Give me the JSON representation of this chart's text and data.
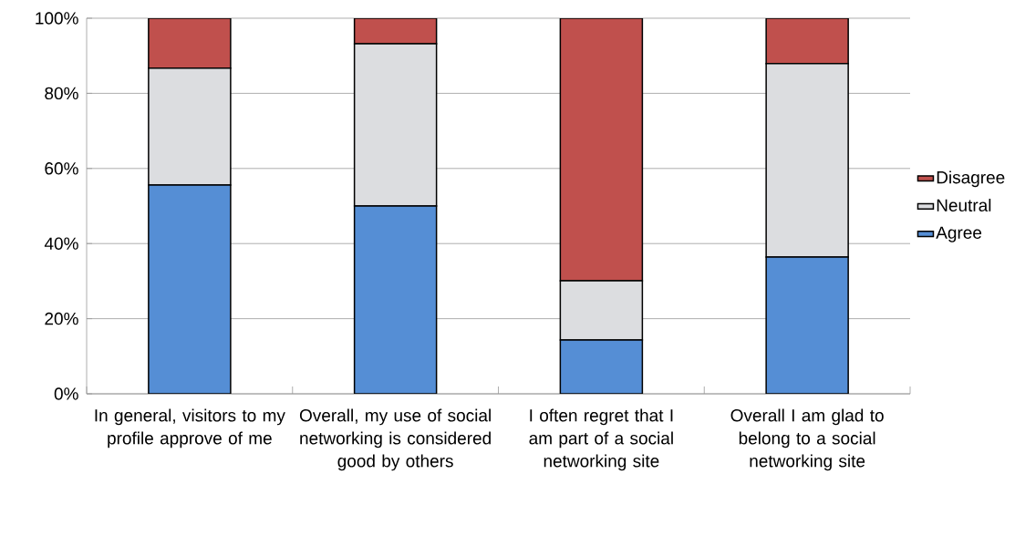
{
  "chart_data": {
    "type": "bar",
    "stacked": true,
    "categories": [
      "In general, visitors to my profile approve of me",
      "Overall, my use of social networking is considered good by others",
      "I often regret that I am part of a social networking site",
      "Overall I am glad to belong to a social networking site"
    ],
    "series": [
      {
        "name": "Agree",
        "color": "#558ed5",
        "values": [
          55.6,
          50.0,
          14.3,
          36.4
        ]
      },
      {
        "name": "Neutral",
        "color": "#dcdde0",
        "values": [
          31.1,
          43.2,
          15.8,
          51.5
        ]
      },
      {
        "name": "Disagree",
        "color": "#c0504d",
        "values": [
          13.3,
          6.8,
          69.9,
          12.1
        ]
      }
    ],
    "ylim": [
      0,
      100
    ],
    "yticks": [
      {
        "value": 0,
        "label": "0%"
      },
      {
        "value": 20,
        "label": "20%"
      },
      {
        "value": 40,
        "label": "40%"
      },
      {
        "value": 60,
        "label": "60%"
      },
      {
        "value": 80,
        "label": "80%"
      },
      {
        "value": 100,
        "label": "100%"
      }
    ],
    "grid": "y",
    "legend": "right"
  }
}
